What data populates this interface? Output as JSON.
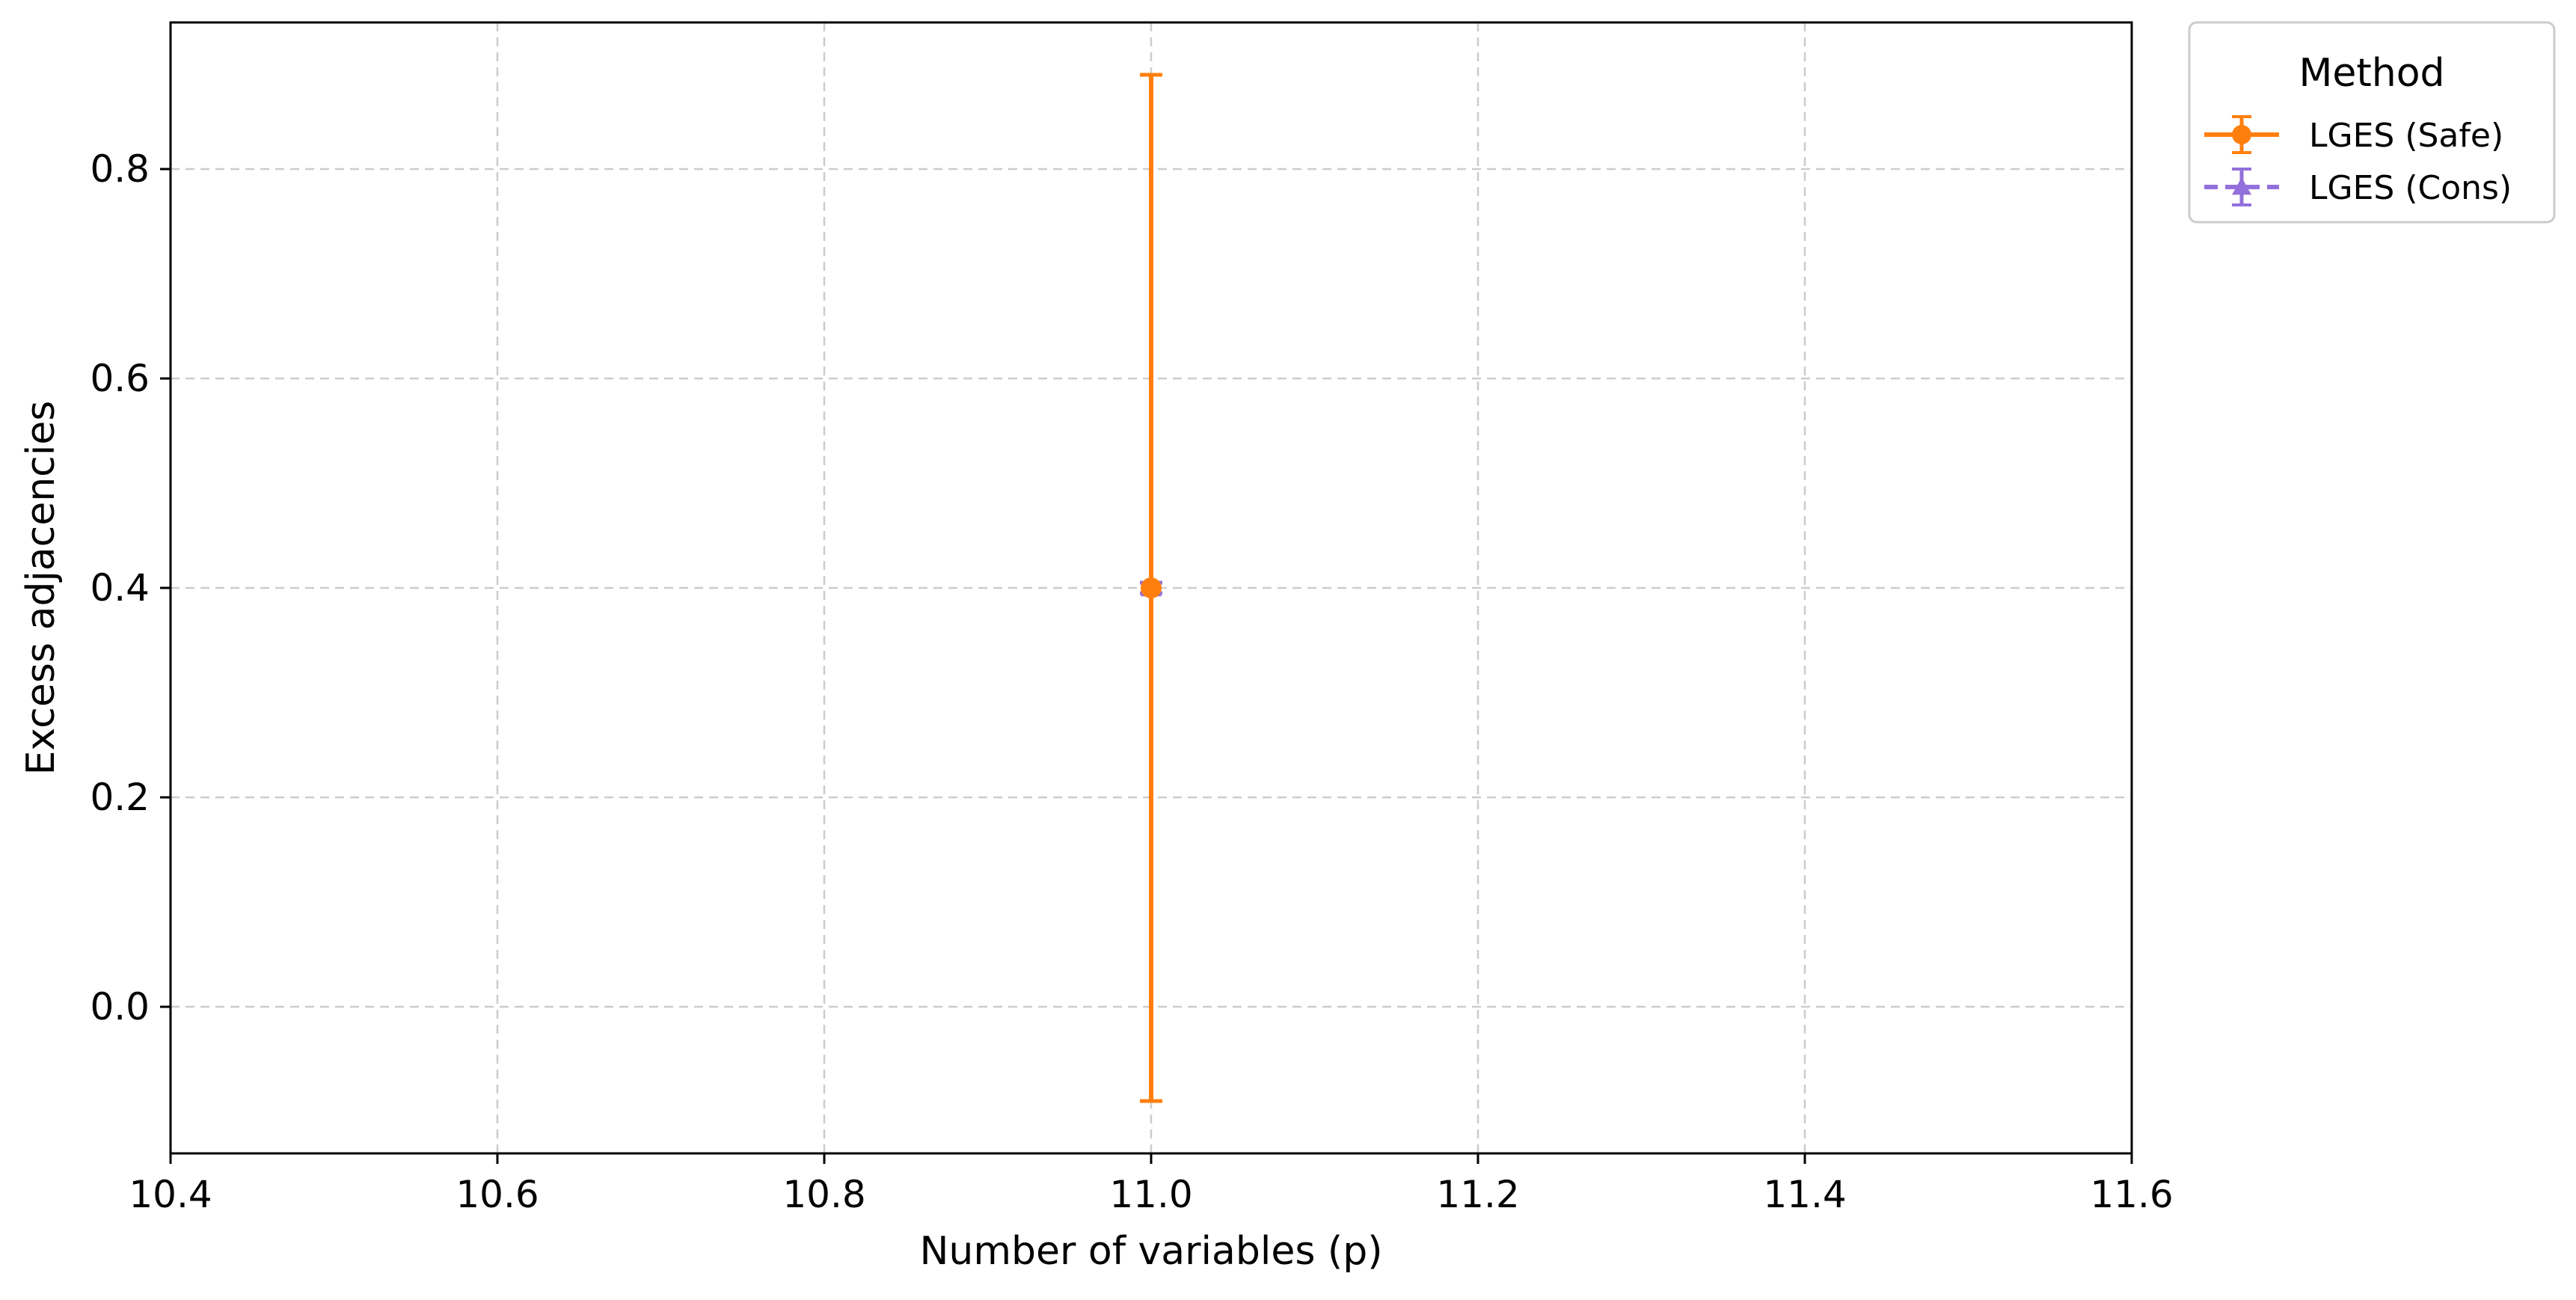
{
  "chart_data": {
    "type": "scatter",
    "title": "",
    "xlabel": "Number of variables (p)",
    "ylabel": "Excess adjacencies",
    "xlim": [
      10.4,
      11.6
    ],
    "ylim": [
      -0.14,
      0.94
    ],
    "xticks": [
      10.4,
      10.6,
      10.8,
      11.0,
      11.2,
      11.4,
      11.6
    ],
    "xtick_labels": [
      "10.4",
      "10.6",
      "10.8",
      "11.0",
      "11.2",
      "11.4",
      "11.6"
    ],
    "yticks": [
      0.0,
      0.2,
      0.4,
      0.6,
      0.8
    ],
    "ytick_labels": [
      "0.0",
      "0.2",
      "0.4",
      "0.6",
      "0.8"
    ],
    "grid": true,
    "legend": {
      "title": "Method",
      "placement": "outside-top-right"
    },
    "series": [
      {
        "name": "LGES (Safe)",
        "color": "#ff7f0e",
        "marker": "circle",
        "line_style": "solid",
        "points": [
          {
            "x": 11.0,
            "y": 0.4,
            "yerr_low": -0.09,
            "yerr_high": 0.89
          }
        ]
      },
      {
        "name": "LGES (Cons)",
        "color": "#9370db",
        "marker": "triangle",
        "line_style": "dashed",
        "points": [
          {
            "x": 11.0,
            "y": 0.4,
            "yerr_low": 0.395,
            "yerr_high": 0.405
          }
        ]
      }
    ]
  }
}
